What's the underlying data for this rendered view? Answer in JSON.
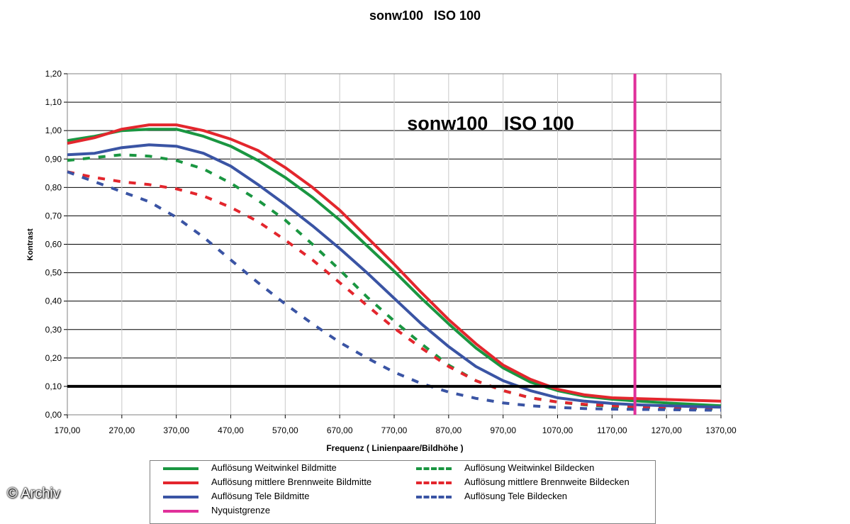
{
  "header": {
    "title": "sonw100   ISO 100"
  },
  "watermark": "© Archiv",
  "chart_data": {
    "type": "line",
    "title": "sonw100   ISO 100",
    "inner_title": "sonw100   ISO 100",
    "xlabel": "Frequenz ( Linienpaare/Bildhöhe )",
    "ylabel": "Kontrast",
    "xlim": [
      170,
      1370
    ],
    "ylim": [
      0,
      1.2
    ],
    "x_ticks": [
      "170,00",
      "270,00",
      "370,00",
      "470,00",
      "570,00",
      "670,00",
      "770,00",
      "870,00",
      "970,00",
      "1070,00",
      "1170,00",
      "1270,00",
      "1370,00"
    ],
    "y_ticks": [
      "0,00",
      "0,10",
      "0,20",
      "0,30",
      "0,40",
      "0,50",
      "0,60",
      "0,70",
      "0,80",
      "0,90",
      "1,00",
      "1,10",
      "1,20"
    ],
    "grid": true,
    "reference_line": {
      "y": 0.1,
      "color": "#000000"
    },
    "nyquist": {
      "name": "Nyquistgrenze",
      "x": 1212,
      "color": "#e0309a"
    },
    "x": [
      170,
      220,
      270,
      320,
      370,
      420,
      470,
      520,
      570,
      620,
      670,
      720,
      770,
      820,
      870,
      920,
      970,
      1020,
      1070,
      1120,
      1170,
      1220,
      1270,
      1320,
      1370
    ],
    "series": [
      {
        "name": "Auflösung Weitwinkel Bildmitte",
        "color": "#1a9641",
        "dash": false,
        "values": [
          0.965,
          0.98,
          1.0,
          1.005,
          1.005,
          0.98,
          0.945,
          0.895,
          0.835,
          0.765,
          0.685,
          0.595,
          0.505,
          0.41,
          0.32,
          0.235,
          0.165,
          0.115,
          0.085,
          0.065,
          0.055,
          0.048,
          0.042,
          0.037,
          0.032
        ]
      },
      {
        "name": "Auflösung mittlere Brennweite Bildmitte",
        "color": "#e3262d",
        "dash": false,
        "values": [
          0.955,
          0.975,
          1.005,
          1.02,
          1.02,
          1.0,
          0.97,
          0.93,
          0.87,
          0.8,
          0.72,
          0.625,
          0.53,
          0.43,
          0.335,
          0.25,
          0.175,
          0.125,
          0.09,
          0.07,
          0.06,
          0.057,
          0.054,
          0.051,
          0.048
        ]
      },
      {
        "name": "Auflösung Tele Bildmitte",
        "color": "#3a54a4",
        "dash": false,
        "values": [
          0.915,
          0.92,
          0.94,
          0.95,
          0.945,
          0.92,
          0.875,
          0.81,
          0.74,
          0.665,
          0.585,
          0.5,
          0.41,
          0.32,
          0.24,
          0.17,
          0.12,
          0.085,
          0.06,
          0.048,
          0.04,
          0.035,
          0.032,
          0.029,
          0.027
        ]
      },
      {
        "name": "Nyquistgrenze",
        "color": "#e0309a",
        "dash": false,
        "vertical_at_x": 1212
      },
      {
        "name": "Auflösung Weitwinkel Bildecken",
        "color": "#1a9641",
        "dash": true,
        "values": [
          0.895,
          0.905,
          0.915,
          0.91,
          0.895,
          0.865,
          0.815,
          0.755,
          0.685,
          0.6,
          0.51,
          0.415,
          0.33,
          0.25,
          0.175,
          0.12,
          0.085,
          0.06,
          0.045,
          0.035,
          0.03,
          0.027,
          0.024,
          0.022,
          0.02
        ]
      },
      {
        "name": "Auflösung mittlere Brennweite Bildecken",
        "color": "#e3262d",
        "dash": true,
        "values": [
          0.855,
          0.835,
          0.82,
          0.81,
          0.795,
          0.77,
          0.73,
          0.68,
          0.615,
          0.545,
          0.465,
          0.385,
          0.305,
          0.235,
          0.17,
          0.12,
          0.085,
          0.06,
          0.045,
          0.037,
          0.032,
          0.029,
          0.027,
          0.025,
          0.024
        ]
      },
      {
        "name": "Auflösung Tele Bildecken",
        "color": "#3a54a4",
        "dash": true,
        "values": [
          0.855,
          0.82,
          0.785,
          0.75,
          0.695,
          0.625,
          0.545,
          0.465,
          0.39,
          0.32,
          0.255,
          0.2,
          0.15,
          0.11,
          0.08,
          0.058,
          0.042,
          0.032,
          0.026,
          0.022,
          0.02,
          0.019,
          0.018,
          0.017,
          0.016
        ]
      }
    ]
  }
}
